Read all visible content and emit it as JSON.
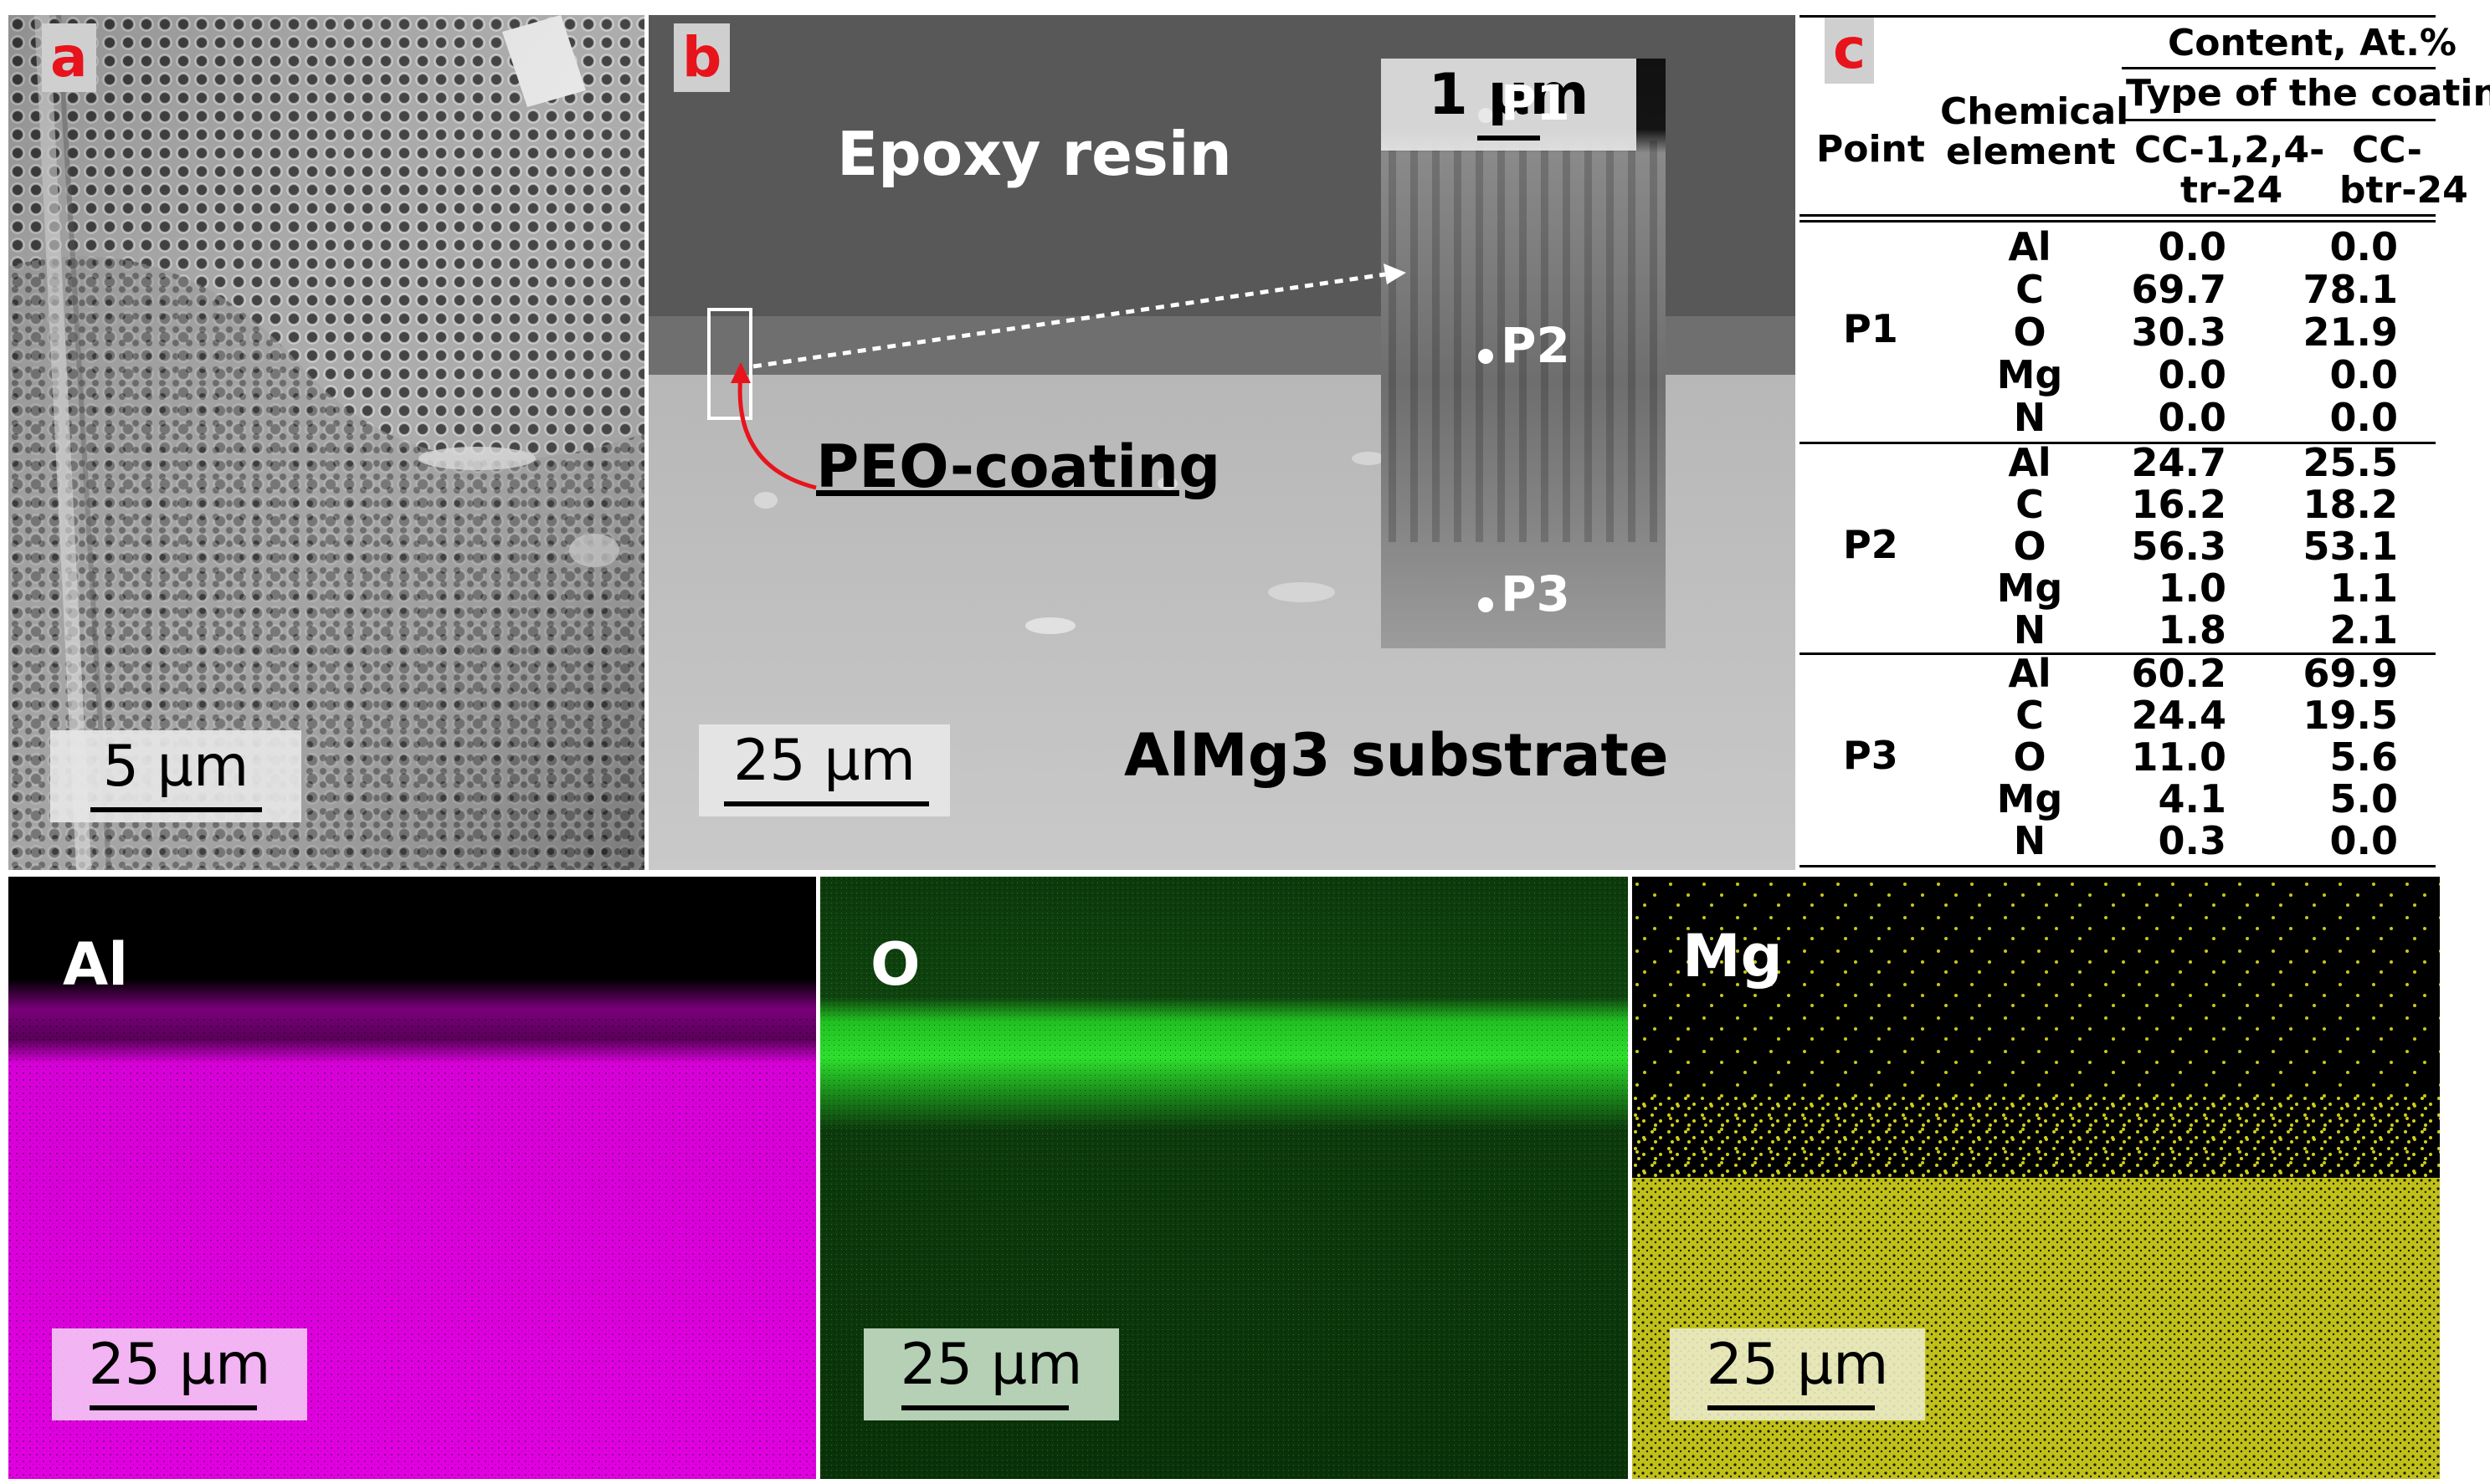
{
  "panel_a": {
    "letter": "a",
    "scale": "5 µm"
  },
  "panel_b": {
    "letter": "b",
    "scale": "25 µm",
    "inset_scale": "1 µm",
    "label_epoxy": "Epoxy resin",
    "label_coating": "PEO-coating",
    "label_substrate": "AlMg3 substrate",
    "points": [
      "P1",
      "P2",
      "P3"
    ]
  },
  "panel_c": {
    "letter": "c",
    "header_content": "Content, At.%",
    "header_type": "Type of the coating",
    "header_point": "Point",
    "header_element_1": "Chemical",
    "header_element_2": "element",
    "col1_line1": "CC-1,2,4-",
    "col1_line2": "tr-24",
    "col2_line1": "CC-",
    "col2_line2": "btr-24",
    "groups": [
      {
        "point": "P1",
        "rows": [
          {
            "element": "Al",
            "v1": "0.0",
            "v2": "0.0"
          },
          {
            "element": "C",
            "v1": "69.7",
            "v2": "78.1"
          },
          {
            "element": "O",
            "v1": "30.3",
            "v2": "21.9"
          },
          {
            "element": "Mg",
            "v1": "0.0",
            "v2": "0.0"
          },
          {
            "element": "N",
            "v1": "0.0",
            "v2": "0.0"
          }
        ]
      },
      {
        "point": "P2",
        "rows": [
          {
            "element": "Al",
            "v1": "24.7",
            "v2": "25.5"
          },
          {
            "element": "C",
            "v1": "16.2",
            "v2": "18.2"
          },
          {
            "element": "O",
            "v1": "56.3",
            "v2": "53.1"
          },
          {
            "element": "Mg",
            "v1": "1.0",
            "v2": "1.1"
          },
          {
            "element": "N",
            "v1": "1.8",
            "v2": "2.1"
          }
        ]
      },
      {
        "point": "P3",
        "rows": [
          {
            "element": "Al",
            "v1": "60.2",
            "v2": "69.9"
          },
          {
            "element": "C",
            "v1": "24.4",
            "v2": "19.5"
          },
          {
            "element": "O",
            "v1": "11.0",
            "v2": "5.6"
          },
          {
            "element": "Mg",
            "v1": "4.1",
            "v2": "5.0"
          },
          {
            "element": "N",
            "v1": "0.3",
            "v2": "0.0"
          }
        ]
      }
    ]
  },
  "maps": [
    {
      "element": "Al",
      "scale": "25 µm",
      "color": "#e600e6"
    },
    {
      "element": "O",
      "scale": "25 µm",
      "color": "#1fd61f"
    },
    {
      "element": "Mg",
      "scale": "25 µm",
      "color": "#e6e61e"
    }
  ],
  "colors": {
    "panel_letter": "#e8141c",
    "arrow": "#e8141c"
  }
}
